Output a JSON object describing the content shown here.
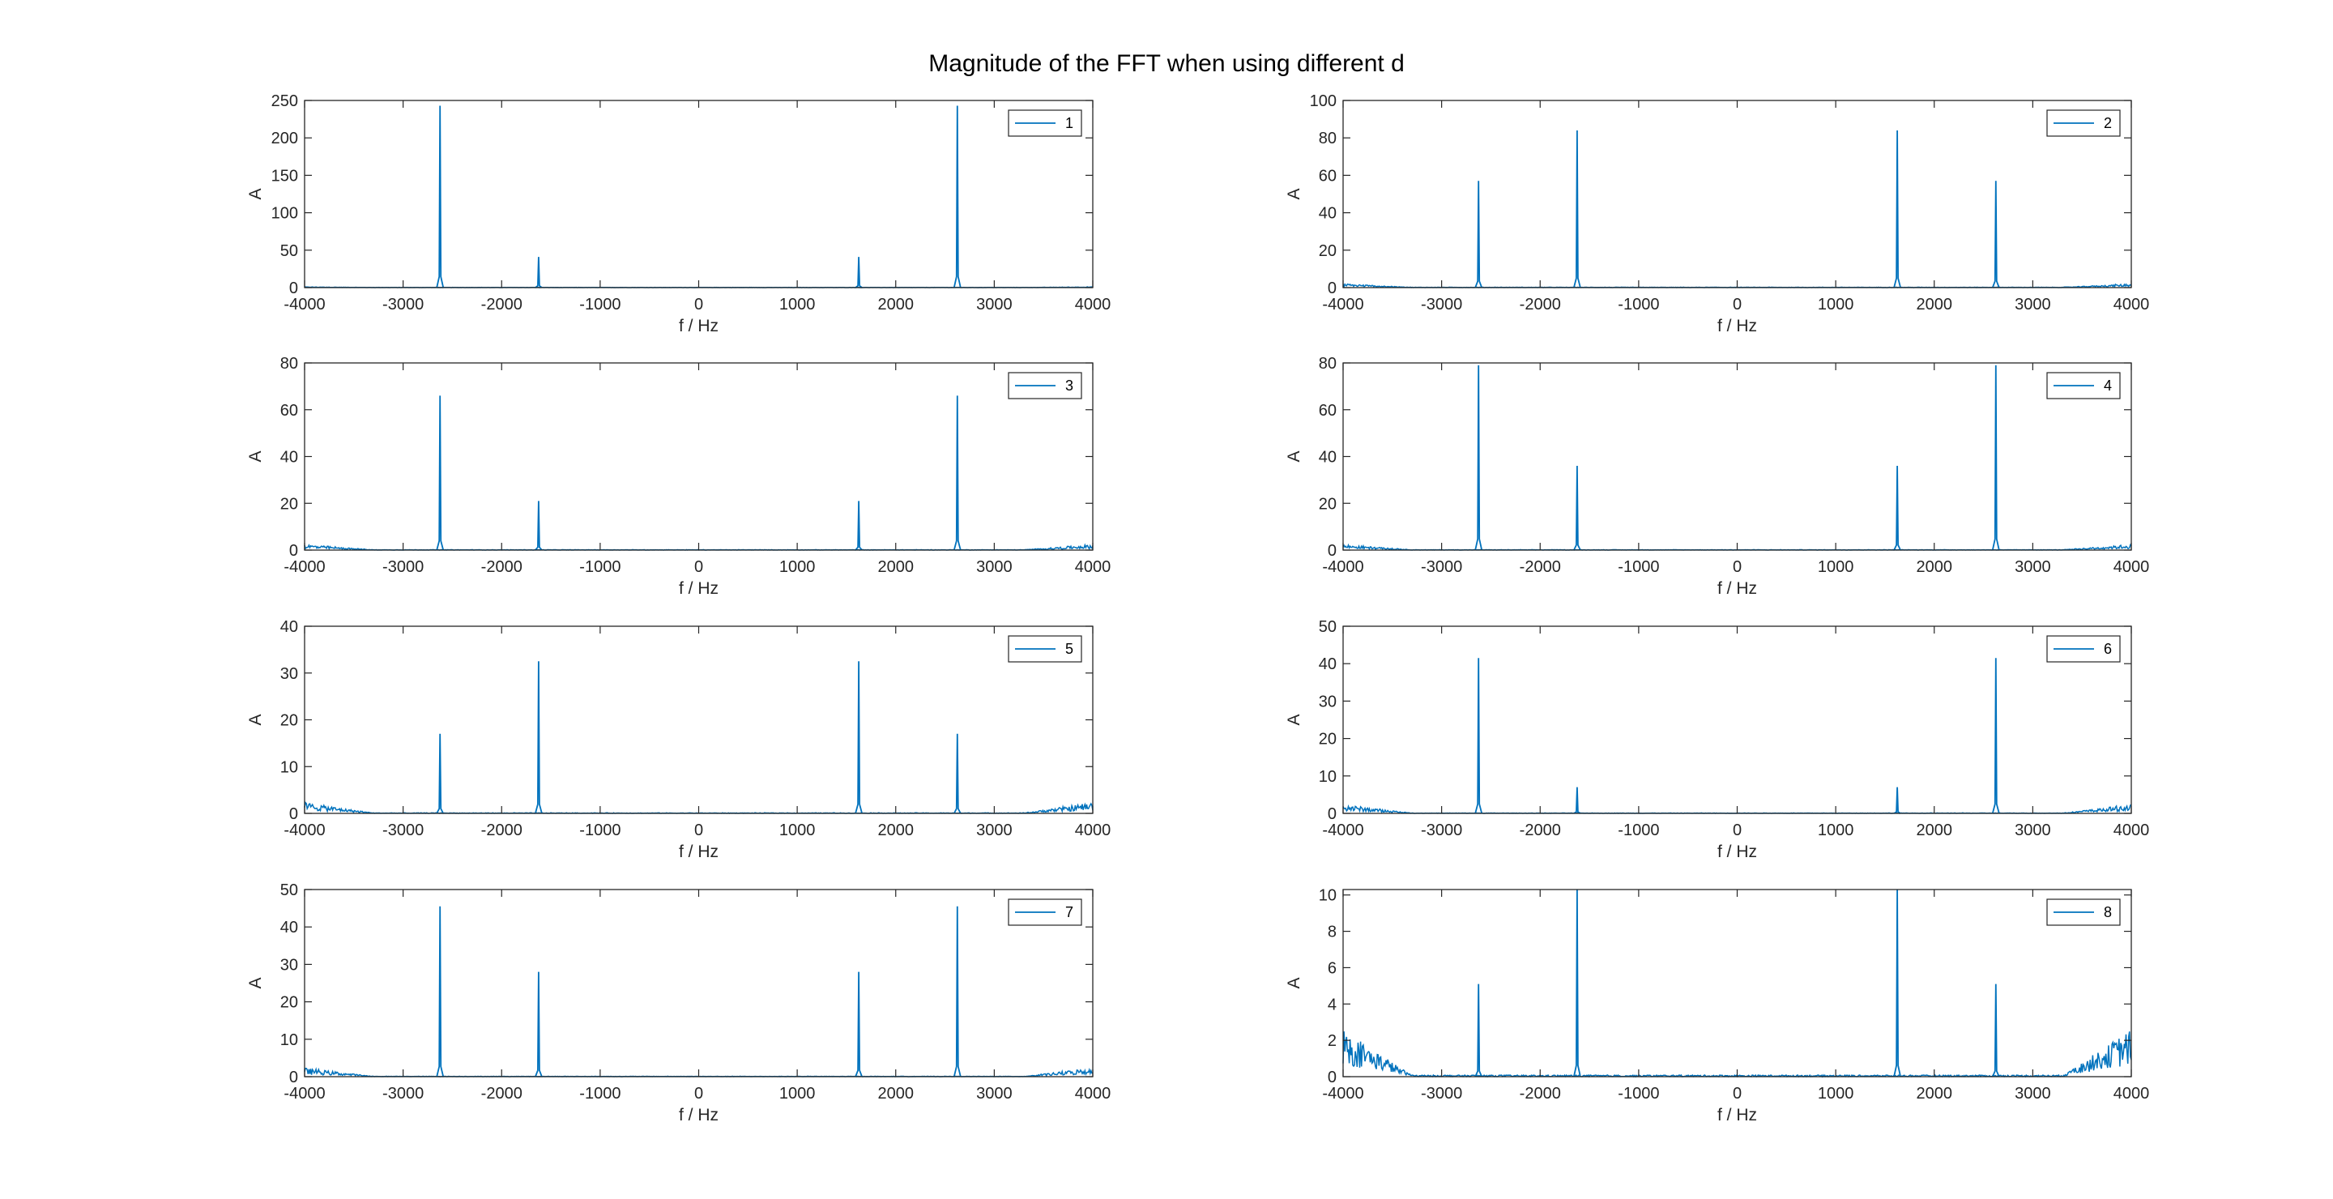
{
  "figure": {
    "title": "Magnitude of the FFT when using different d"
  },
  "style": {
    "series_color": "#0072BD",
    "axes_color": "#262626",
    "background": "#ffffff",
    "grid": false,
    "legend_placement": "top-right"
  },
  "chart_data": [
    {
      "type": "line",
      "xlabel": "f / Hz",
      "ylabel": "A",
      "xlim": [
        -4000,
        4000
      ],
      "ylim": [
        0,
        250
      ],
      "xticks": [
        -4000,
        -3000,
        -2000,
        -1000,
        0,
        1000,
        2000,
        3000,
        4000
      ],
      "yticks": [
        0,
        50,
        100,
        150,
        200,
        250
      ],
      "series": [
        {
          "name": "1",
          "noise_floor": 0.5,
          "edge_noise": 0.6,
          "peaks": [
            {
              "f": -2625,
              "A": 243
            },
            {
              "f": -1625,
              "A": 41
            },
            {
              "f": 1625,
              "A": 41
            },
            {
              "f": 2625,
              "A": 243
            }
          ]
        }
      ]
    },
    {
      "type": "line",
      "xlabel": "f / Hz",
      "ylabel": "A",
      "xlim": [
        -4000,
        4000
      ],
      "ylim": [
        0,
        100
      ],
      "xticks": [
        -4000,
        -3000,
        -2000,
        -1000,
        0,
        1000,
        2000,
        3000,
        4000
      ],
      "yticks": [
        0,
        20,
        40,
        60,
        80,
        100
      ],
      "series": [
        {
          "name": "2",
          "noise_floor": 0.4,
          "edge_noise": 1.5,
          "peaks": [
            {
              "f": -2625,
              "A": 57
            },
            {
              "f": -1625,
              "A": 84
            },
            {
              "f": 1625,
              "A": 84
            },
            {
              "f": 2625,
              "A": 57
            }
          ]
        }
      ]
    },
    {
      "type": "line",
      "xlabel": "f / Hz",
      "ylabel": "A",
      "xlim": [
        -4000,
        4000
      ],
      "ylim": [
        0,
        80
      ],
      "xticks": [
        -4000,
        -3000,
        -2000,
        -1000,
        0,
        1000,
        2000,
        3000,
        4000
      ],
      "yticks": [
        0,
        20,
        40,
        60,
        80
      ],
      "series": [
        {
          "name": "3",
          "noise_floor": 0.3,
          "edge_noise": 1.8,
          "peaks": [
            {
              "f": -2625,
              "A": 66
            },
            {
              "f": -1625,
              "A": 21
            },
            {
              "f": 1625,
              "A": 21
            },
            {
              "f": 2625,
              "A": 66
            }
          ]
        }
      ]
    },
    {
      "type": "line",
      "xlabel": "f / Hz",
      "ylabel": "A",
      "xlim": [
        -4000,
        4000
      ],
      "ylim": [
        0,
        80
      ],
      "xticks": [
        -4000,
        -3000,
        -2000,
        -1000,
        0,
        1000,
        2000,
        3000,
        4000
      ],
      "yticks": [
        0,
        20,
        40,
        60,
        80
      ],
      "series": [
        {
          "name": "4",
          "noise_floor": 0.3,
          "edge_noise": 1.8,
          "peaks": [
            {
              "f": -2625,
              "A": 79
            },
            {
              "f": -1625,
              "A": 36
            },
            {
              "f": 1625,
              "A": 36
            },
            {
              "f": 2625,
              "A": 79
            }
          ]
        }
      ]
    },
    {
      "type": "line",
      "xlabel": "f / Hz",
      "ylabel": "A",
      "xlim": [
        -4000,
        4000
      ],
      "ylim": [
        0,
        40
      ],
      "xticks": [
        -4000,
        -3000,
        -2000,
        -1000,
        0,
        1000,
        2000,
        3000,
        4000
      ],
      "yticks": [
        0,
        10,
        20,
        30,
        40
      ],
      "series": [
        {
          "name": "5",
          "noise_floor": 0.2,
          "edge_noise": 1.8,
          "peaks": [
            {
              "f": -2625,
              "A": 17
            },
            {
              "f": -1625,
              "A": 32.5
            },
            {
              "f": 1625,
              "A": 32.5
            },
            {
              "f": 2625,
              "A": 17
            }
          ]
        }
      ]
    },
    {
      "type": "line",
      "xlabel": "f / Hz",
      "ylabel": "A",
      "xlim": [
        -4000,
        4000
      ],
      "ylim": [
        0,
        50
      ],
      "xticks": [
        -4000,
        -3000,
        -2000,
        -1000,
        0,
        1000,
        2000,
        3000,
        4000
      ],
      "yticks": [
        0,
        10,
        20,
        30,
        40,
        50
      ],
      "series": [
        {
          "name": "6",
          "noise_floor": 0.2,
          "edge_noise": 1.8,
          "peaks": [
            {
              "f": -2625,
              "A": 41.5
            },
            {
              "f": -1625,
              "A": 7
            },
            {
              "f": 1625,
              "A": 7
            },
            {
              "f": 2625,
              "A": 41.5
            }
          ]
        }
      ]
    },
    {
      "type": "line",
      "xlabel": "f / Hz",
      "ylabel": "A",
      "xlim": [
        -4000,
        4000
      ],
      "ylim": [
        0,
        50
      ],
      "xticks": [
        -4000,
        -3000,
        -2000,
        -1000,
        0,
        1000,
        2000,
        3000,
        4000
      ],
      "yticks": [
        0,
        10,
        20,
        30,
        40,
        50
      ],
      "series": [
        {
          "name": "7",
          "noise_floor": 0.2,
          "edge_noise": 1.8,
          "peaks": [
            {
              "f": -2625,
              "A": 45.5
            },
            {
              "f": -1625,
              "A": 28
            },
            {
              "f": 1625,
              "A": 28
            },
            {
              "f": 2625,
              "A": 45.5
            }
          ]
        }
      ]
    },
    {
      "type": "line",
      "xlabel": "f / Hz",
      "ylabel": "A",
      "xlim": [
        -4000,
        4000
      ],
      "ylim": [
        0,
        10.3
      ],
      "xticks": [
        -4000,
        -3000,
        -2000,
        -1000,
        0,
        1000,
        2000,
        3000,
        4000
      ],
      "yticks": [
        0,
        2,
        4,
        6,
        8,
        10
      ],
      "series": [
        {
          "name": "8",
          "noise_floor": 0.15,
          "edge_noise": 2.0,
          "peaks": [
            {
              "f": -2625,
              "A": 5.1
            },
            {
              "f": -1625,
              "A": 10.3
            },
            {
              "f": 1625,
              "A": 10.3
            },
            {
              "f": 2625,
              "A": 5.1
            }
          ]
        }
      ]
    }
  ]
}
